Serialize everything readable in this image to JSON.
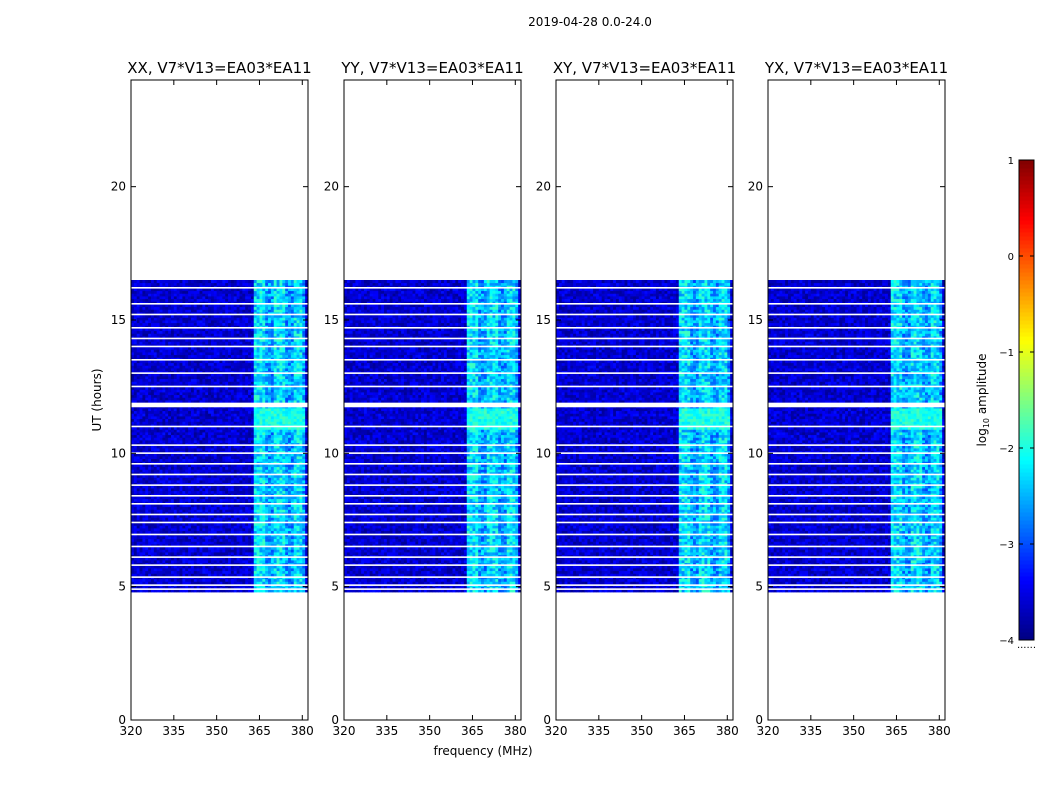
{
  "figure": {
    "suptitle": "2019-04-28 0.0-24.0"
  },
  "colorbar": {
    "label_prefix": "log",
    "label_sub": "10",
    "label_suffix": " amplitude",
    "ticks": [
      1,
      0,
      -1,
      -2,
      -3,
      -4
    ],
    "tick_labels": [
      "1",
      "0",
      "−1",
      "−2",
      "−3",
      "−4"
    ],
    "range": [
      -4,
      1
    ],
    "colormap": "jet",
    "under_text": "......"
  },
  "chart_data": [
    {
      "type": "heatmap",
      "title": "XX, V7*V13=EA03*EA11",
      "xlabel": "",
      "ylabel": "UT (hours)",
      "x_ticks": [
        320,
        335,
        350,
        365,
        380
      ],
      "y_ticks": [
        0,
        5,
        10,
        15,
        20
      ],
      "xlim": [
        320,
        382
      ],
      "ylim": [
        0,
        24
      ],
      "data_range_hours": [
        4.8,
        16.5
      ],
      "bright_band_mhz": [
        363,
        380
      ],
      "level_background": -3.6,
      "level_band": -2.6,
      "level_peak": -2.0
    },
    {
      "type": "heatmap",
      "title": "YY, V7*V13=EA03*EA11",
      "xlabel": "",
      "ylabel": "",
      "x_ticks": [
        320,
        335,
        350,
        365,
        380
      ],
      "y_ticks": [
        0,
        5,
        10,
        15,
        20
      ],
      "xlim": [
        320,
        382
      ],
      "ylim": [
        0,
        24
      ],
      "data_range_hours": [
        4.8,
        16.5
      ],
      "bright_band_mhz": [
        363,
        380
      ],
      "level_background": -3.6,
      "level_band": -2.6,
      "level_peak": -2.0
    },
    {
      "type": "heatmap",
      "title": "XY, V7*V13=EA03*EA11",
      "xlabel": "",
      "ylabel": "",
      "x_ticks": [
        320,
        335,
        350,
        365,
        380
      ],
      "y_ticks": [
        0,
        5,
        10,
        15,
        20
      ],
      "xlim": [
        320,
        382
      ],
      "ylim": [
        0,
        24
      ],
      "data_range_hours": [
        4.8,
        16.5
      ],
      "bright_band_mhz": [
        363,
        380
      ],
      "level_background": -3.6,
      "level_band": -2.6,
      "level_peak": -2.0
    },
    {
      "type": "heatmap",
      "title": "YX, V7*V13=EA03*EA11",
      "xlabel": "",
      "ylabel": "",
      "x_ticks": [
        320,
        335,
        350,
        365,
        380
      ],
      "y_ticks": [
        0,
        5,
        10,
        15,
        20
      ],
      "xlim": [
        320,
        382
      ],
      "ylim": [
        0,
        24
      ],
      "data_range_hours": [
        4.8,
        16.5
      ],
      "bright_band_mhz": [
        363,
        380
      ],
      "level_background": -3.6,
      "level_band": -2.6,
      "level_peak": -2.0
    }
  ],
  "shared": {
    "xlabel": "frequency (MHz)",
    "flagged_hours": [
      4.9,
      5.05,
      5.35,
      5.8,
      6.1,
      6.5,
      6.95,
      7.4,
      7.7,
      8.1,
      8.4,
      8.8,
      9.2,
      9.6,
      10.0,
      10.3,
      11.0,
      11.75,
      12.5,
      13.0,
      13.5,
      14.0,
      14.3,
      14.7,
      15.2,
      15.6,
      16.2
    ],
    "flagged_gap_hours": [
      11.75,
      11.9
    ]
  }
}
